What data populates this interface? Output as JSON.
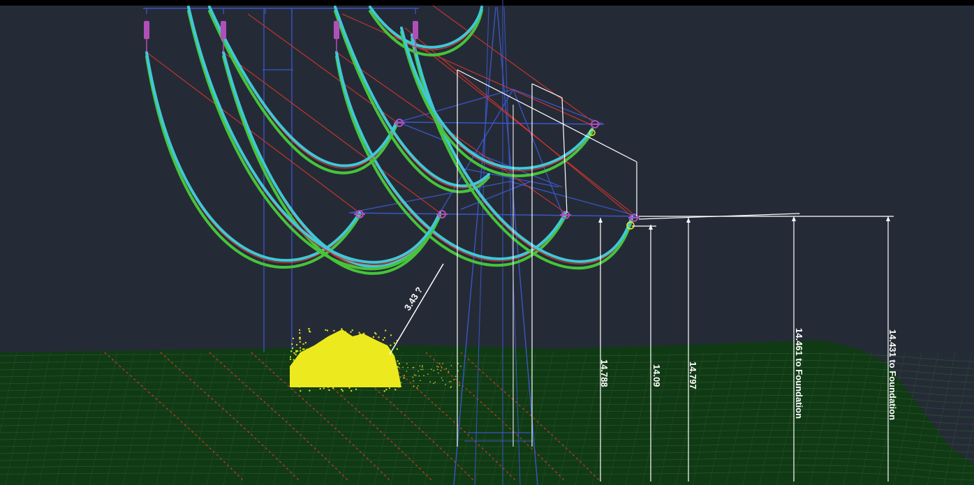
{
  "view": {
    "background": "#252b36",
    "ground_color": "#103a14",
    "ground_mesh_color": "#2d5a33",
    "structure_color": "#3a55c8",
    "conductor_color": "#3fc8d8",
    "conductor_alt_color": "#46c43a",
    "catenary_color": "#e0352b",
    "vegetation_color": "#ecea1e",
    "insulator_color": "#b04fb8",
    "dimension_color": "#ffffff"
  },
  "dimensions": {
    "veg": "3.43 ?",
    "d1": "14.788",
    "d2": "14.09",
    "d3": "14.797",
    "d4": "14.461 to Foundation",
    "d5": "14.431 to Foundation"
  }
}
